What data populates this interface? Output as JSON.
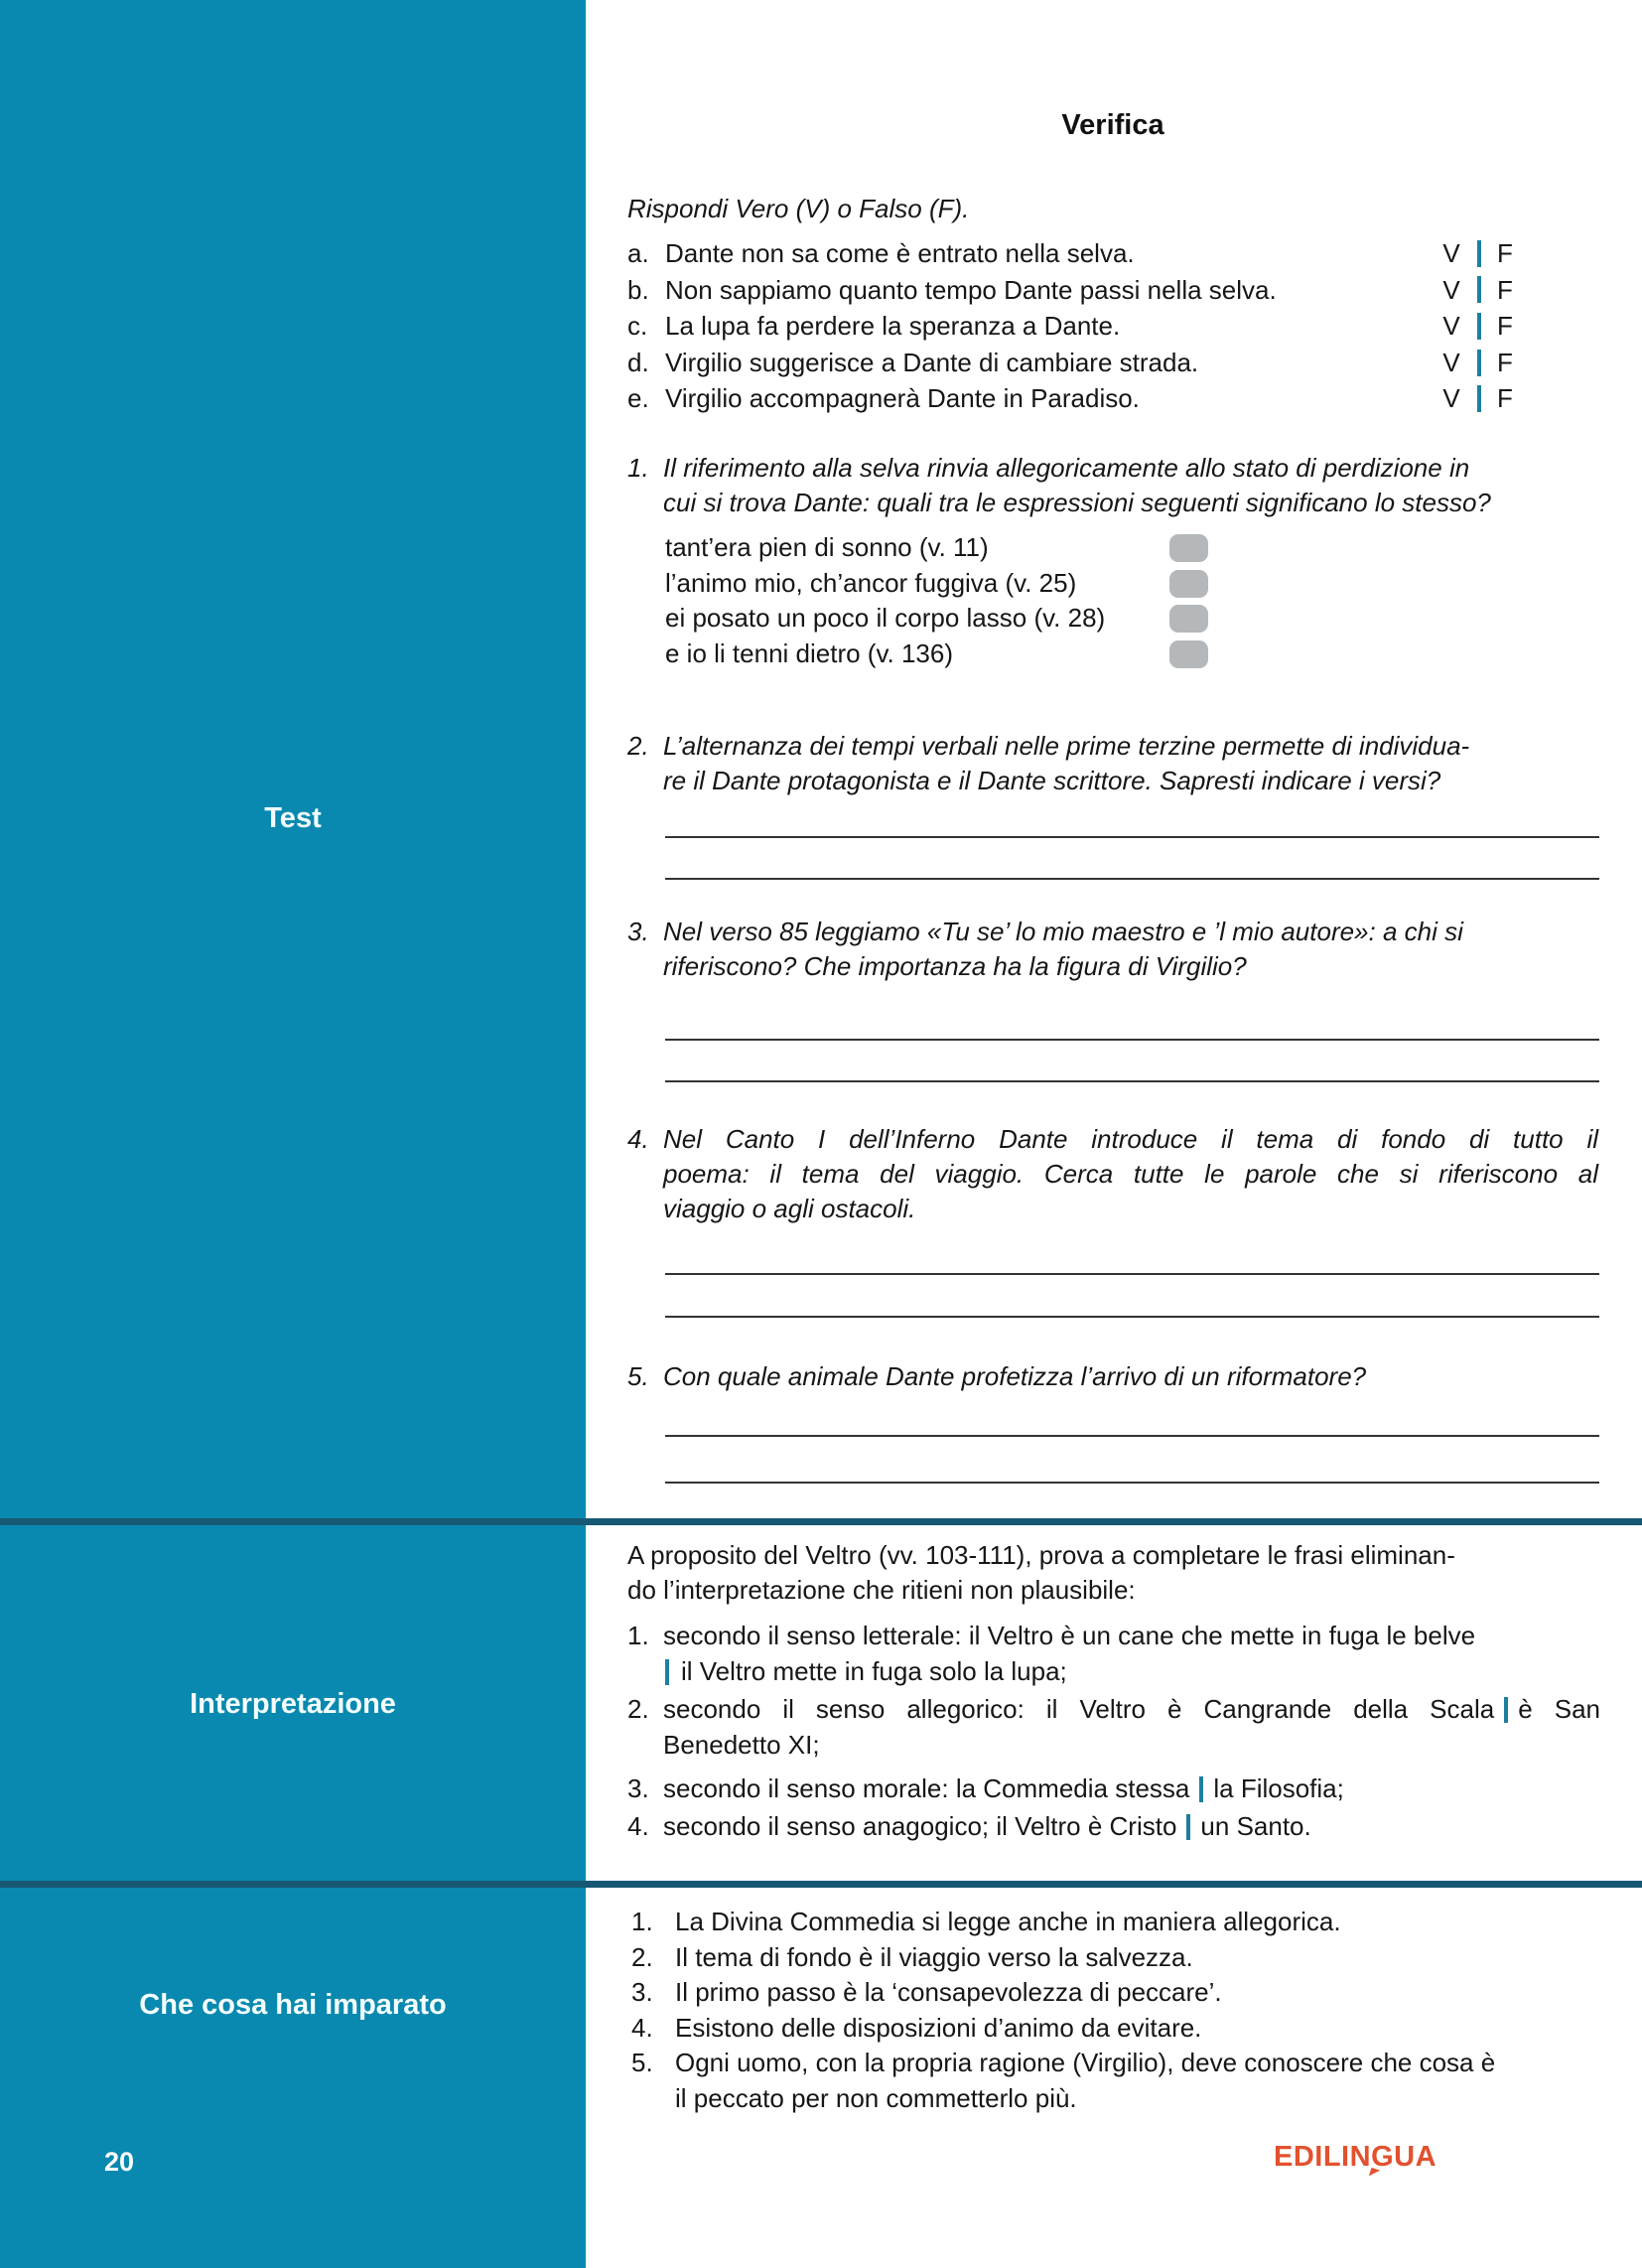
{
  "page": {
    "number": "20",
    "publisher": "EDILINGUA"
  },
  "sidebar": {
    "test_label": "Test",
    "interpretazione_label": "Interpretazione",
    "imparato_label": "Che cosa hai imparato"
  },
  "verifica": {
    "title": "Verifica",
    "instruction": "Rispondi Vero (V) o Falso (F).",
    "vf": {
      "true": "V",
      "false": "F"
    },
    "statements": [
      {
        "letter": "a.",
        "text": "Dante non sa come è entrato nella selva."
      },
      {
        "letter": "b.",
        "text": "Non sappiamo quanto tempo Dante passi nella selva."
      },
      {
        "letter": "c.",
        "text": "La lupa fa perdere la speranza a Dante."
      },
      {
        "letter": "d.",
        "text": "Virgilio suggerisce a Dante di cambiare strada."
      },
      {
        "letter": "e.",
        "text": "Virgilio accompagnerà Dante in Paradiso."
      }
    ],
    "q1": {
      "number": "1.",
      "line1": "Il riferimento alla selva rinvia allegoricamente allo stato di perdizione in",
      "line2": "cui si trova Dante: quali tra le espressioni seguenti significano lo stesso?",
      "options": [
        "tant’era pien di sonno (v. 11)",
        "l’animo mio, ch’ancor fuggiva (v. 25)",
        "ei posato un poco il corpo lasso (v. 28)",
        "e io li tenni dietro (v. 136)"
      ]
    },
    "q2": {
      "number": "2.",
      "line1": "L’alternanza dei tempi verbali nelle prime terzine permette di individua-",
      "line2": "re il Dante protagonista e il Dante scrittore. Sapresti indicare i versi?"
    },
    "q3": {
      "number": "3.",
      "line1": "Nel verso 85 leggiamo «Tu se’ lo mio maestro e ’l mio autore»: a chi si",
      "line2": "riferiscono? Che importanza ha la figura di Virgilio?"
    },
    "q4": {
      "number": "4.",
      "line1": "Nel Canto I dell’Inferno Dante introduce il tema di fondo di tutto il",
      "line2": "poema: il tema del viaggio. Cerca tutte le parole che si riferiscono al",
      "line3": "viaggio o agli ostacoli."
    },
    "q5": {
      "number": "5.",
      "line1": "Con quale animale Dante profetizza l’arrivo di un riformatore?"
    }
  },
  "interpretazione": {
    "intro_line1": "A proposito del Veltro (vv. 103-111), prova a completare le frasi eliminan-",
    "intro_line2": "do l’interpretazione che ritieni non plausibile:",
    "items": [
      {
        "number": "1.",
        "l1": "secondo il senso letterale: il Veltro è un cane che mette in fuga le belve",
        "l2": "il Veltro mette in fuga solo la lupa;"
      },
      {
        "number": "2.",
        "l1_pre": "secondo il senso allegorico: il Veltro è Cangrande della Scala",
        "l1_post": "è San",
        "l2": "Benedetto XI;"
      },
      {
        "number": "3.",
        "l1_pre": "secondo il senso morale: la Commedia stessa",
        "l1_post": "la Filosofia;"
      },
      {
        "number": "4.",
        "l1_pre": "secondo il senso anagogico; il Veltro è Cristo",
        "l1_post": "un Santo."
      }
    ]
  },
  "imparato": {
    "items": [
      {
        "number": "1.",
        "text": "La Divina Commedia si legge anche in maniera allegorica."
      },
      {
        "number": "2.",
        "text": "Il tema di fondo è il viaggio verso la salvezza."
      },
      {
        "number": "3.",
        "text": "Il primo passo è la ‘consapevolezza di peccare’."
      },
      {
        "number": "4.",
        "text": "Esistono delle disposizioni d’animo da evitare."
      },
      {
        "number": "5.",
        "line1": "Ogni uomo, con la propria ragione (Virgilio), deve conoscere che cosa è",
        "line2": "il peccato per non commetterlo più."
      }
    ]
  }
}
